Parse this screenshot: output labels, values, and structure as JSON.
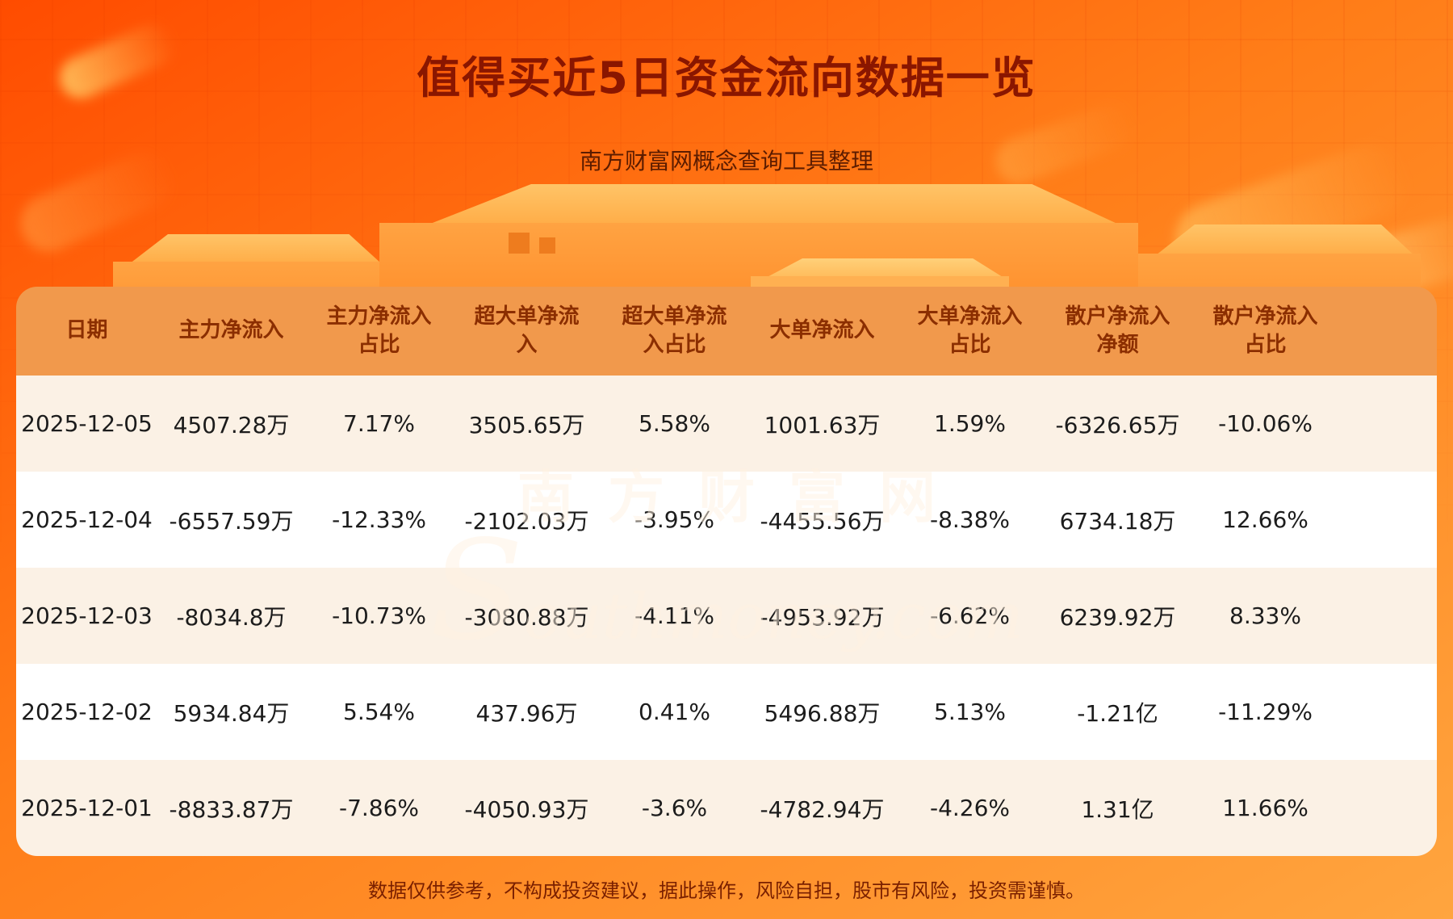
{
  "page": {
    "title": "值得买近5日资金流向数据一览",
    "subtitle": "南方财富网概念查询工具整理",
    "disclaimer": "数据仅供参考，不构成投资建议，据此操作，风险自担，股市有风险，投资需谨慎。",
    "watermark": {
      "cn": "南方财富网",
      "en": "Southmoney.com"
    }
  },
  "chart_data": {
    "type": "table",
    "title": "值得买近5日资金流向数据一览",
    "columns": [
      "日期",
      "主力净流入",
      "主力净流入占比",
      "超大单净流入",
      "超大单净流入占比",
      "大单净流入",
      "大单净流入占比",
      "散户净流入净额",
      "散户净流入占比"
    ],
    "rows": [
      [
        "2025-12-05",
        "4507.28万",
        "7.17%",
        "3505.65万",
        "5.58%",
        "1001.63万",
        "1.59%",
        "-6326.65万",
        "-10.06%"
      ],
      [
        "2025-12-04",
        "-6557.59万",
        "-12.33%",
        "-2102.03万",
        "-3.95%",
        "-4455.56万",
        "-8.38%",
        "6734.18万",
        "12.66%"
      ],
      [
        "2025-12-03",
        "-8034.8万",
        "-10.73%",
        "-3080.88万",
        "-4.11%",
        "-4953.92万",
        "-6.62%",
        "6239.92万",
        "8.33%"
      ],
      [
        "2025-12-02",
        "5934.84万",
        "5.54%",
        "437.96万",
        "0.41%",
        "5496.88万",
        "5.13%",
        "-1.21亿",
        "-11.29%"
      ],
      [
        "2025-12-01",
        "-8833.87万",
        "-7.86%",
        "-4050.93万",
        "-3.6%",
        "-4782.94万",
        "-4.26%",
        "1.31亿",
        "11.66%"
      ]
    ]
  },
  "colors": {
    "bg_top": "#ff4c00",
    "bg_mid": "#ff7d18",
    "bg_bottom": "#ffa53f",
    "title_text": "#8a1600",
    "subtitle_text": "#5c1c00",
    "header_bg": "#f1994c",
    "header_text": "#8b2e00",
    "row_cream": "#fbf1e5",
    "row_white": "#ffffff",
    "cell_text": "#1c1c1c",
    "footer_text": "#7a2000",
    "watermark": "rgba(255,242,226,0.5)"
  }
}
